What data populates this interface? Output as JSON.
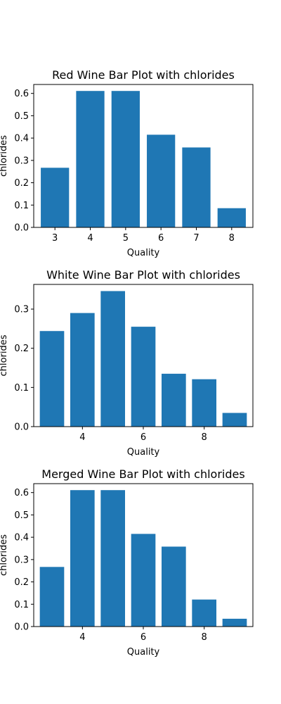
{
  "chart_data": [
    {
      "type": "bar",
      "title": "Red Wine Bar Plot with chlorides",
      "xlabel": "Quality",
      "ylabel": "chlorides",
      "x": [
        3,
        4,
        5,
        6,
        7,
        8
      ],
      "values": [
        0.267,
        0.611,
        0.611,
        0.415,
        0.358,
        0.086
      ],
      "xlim": [
        2.4,
        8.6
      ],
      "ylim": [
        0,
        0.64
      ],
      "xticks": [
        3,
        4,
        5,
        6,
        7,
        8
      ],
      "yticks": [
        0.0,
        0.1,
        0.2,
        0.3,
        0.4,
        0.5,
        0.6
      ],
      "ytick_labels": [
        "0.0",
        "0.1",
        "0.2",
        "0.3",
        "0.4",
        "0.5",
        "0.6"
      ],
      "grid": false,
      "color": "#1f77b4"
    },
    {
      "type": "bar",
      "title": "White Wine Bar Plot with chlorides",
      "xlabel": "Quality",
      "ylabel": "chlorides",
      "x": [
        3,
        4,
        5,
        6,
        7,
        8,
        9
      ],
      "values": [
        0.244,
        0.29,
        0.346,
        0.255,
        0.135,
        0.121,
        0.035
      ],
      "xlim": [
        2.4,
        9.6
      ],
      "ylim": [
        0,
        0.363
      ],
      "xticks": [
        4,
        6,
        8
      ],
      "yticks": [
        0.0,
        0.1,
        0.2,
        0.3
      ],
      "ytick_labels": [
        "0.0",
        "0.1",
        "0.2",
        "0.3"
      ],
      "grid": false,
      "color": "#1f77b4"
    },
    {
      "type": "bar",
      "title": "Merged Wine Bar Plot with chlorides",
      "xlabel": "Quality",
      "ylabel": "chlorides",
      "x": [
        3,
        4,
        5,
        6,
        7,
        8,
        9
      ],
      "values": [
        0.267,
        0.611,
        0.611,
        0.415,
        0.358,
        0.121,
        0.035
      ],
      "xlim": [
        2.4,
        9.6
      ],
      "ylim": [
        0,
        0.64
      ],
      "xticks": [
        4,
        6,
        8
      ],
      "yticks": [
        0.0,
        0.1,
        0.2,
        0.3,
        0.4,
        0.5,
        0.6
      ],
      "ytick_labels": [
        "0.0",
        "0.1",
        "0.2",
        "0.3",
        "0.4",
        "0.5",
        "0.6"
      ],
      "grid": false,
      "color": "#1f77b4"
    }
  ]
}
